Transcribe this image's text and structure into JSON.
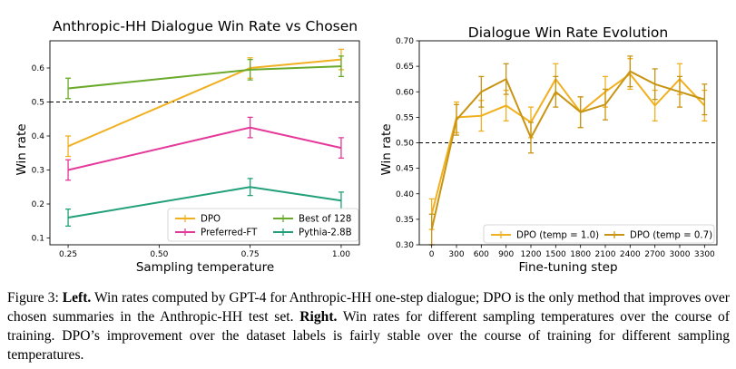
{
  "chart_data": [
    {
      "type": "line",
      "title": "Anthropic-HH Dialogue Win Rate vs Chosen",
      "xlabel": "Sampling temperature",
      "ylabel": "Win rate",
      "xlim": [
        0.2,
        1.05
      ],
      "ylim": [
        0.08,
        0.68
      ],
      "xticks": [
        0.25,
        0.5,
        0.75,
        1.0
      ],
      "xtick_labels": [
        "0.25",
        "0.50",
        "0.75",
        "1.00"
      ],
      "yticks": [
        0.1,
        0.2,
        0.3,
        0.4,
        0.5,
        0.6
      ],
      "ytick_labels": [
        "0.1",
        "0.2",
        "0.3",
        "0.4",
        "0.5",
        "0.6"
      ],
      "reference_line": 0.5,
      "legend_position": "lower-right",
      "series": [
        {
          "name": "DPO",
          "color": "#f0b020",
          "x": [
            0.25,
            0.75,
            1.0
          ],
          "values": [
            0.37,
            0.6,
            0.625
          ],
          "errors": [
            0.03,
            0.03,
            0.03
          ]
        },
        {
          "name": "Best of 128",
          "color": "#6aaa2a",
          "x": [
            0.25,
            0.75,
            1.0
          ],
          "values": [
            0.54,
            0.595,
            0.605
          ],
          "errors": [
            0.03,
            0.03,
            0.03
          ]
        },
        {
          "name": "Preferred-FT",
          "color": "#e5399a",
          "x": [
            0.25,
            0.75,
            1.0
          ],
          "values": [
            0.3,
            0.425,
            0.365
          ],
          "errors": [
            0.03,
            0.03,
            0.03
          ]
        },
        {
          "name": "Pythia-2.8B",
          "color": "#21a07a",
          "x": [
            0.25,
            0.75,
            1.0
          ],
          "values": [
            0.16,
            0.25,
            0.21
          ],
          "errors": [
            0.025,
            0.025,
            0.025
          ]
        }
      ]
    },
    {
      "type": "line",
      "title": "Dialogue Win Rate Evolution",
      "xlabel": "Fine-tuning step",
      "ylabel": "Win rate",
      "xlim": [
        -150,
        3450
      ],
      "ylim": [
        0.3,
        0.7
      ],
      "xticks": [
        0,
        300,
        600,
        900,
        1200,
        1500,
        1800,
        2100,
        2400,
        2700,
        3000,
        3300
      ],
      "xtick_labels": [
        "0",
        "300",
        "600",
        "900",
        "1200",
        "1500",
        "1800",
        "2100",
        "2400",
        "2700",
        "3000",
        "3300"
      ],
      "yticks": [
        0.3,
        0.35,
        0.4,
        0.45,
        0.5,
        0.55,
        0.6,
        0.65,
        0.7
      ],
      "ytick_labels": [
        "0.30",
        "0.35",
        "0.40",
        "0.45",
        "0.50",
        "0.55",
        "0.60",
        "0.65",
        "0.70"
      ],
      "reference_line": 0.5,
      "legend_position": "lower-right",
      "series": [
        {
          "name": "DPO (temp = 1.0)",
          "color": "#f0b020",
          "x": [
            0,
            300,
            600,
            900,
            1200,
            1500,
            1800,
            2100,
            2400,
            2700,
            3000,
            3300
          ],
          "values": [
            0.36,
            0.55,
            0.553,
            0.573,
            0.54,
            0.625,
            0.56,
            0.6,
            0.635,
            0.573,
            0.625,
            0.573
          ],
          "errors": [
            0.03,
            0.03,
            0.03,
            0.03,
            0.03,
            0.03,
            0.03,
            0.03,
            0.03,
            0.03,
            0.03,
            0.03
          ]
        },
        {
          "name": "DPO (temp = 0.7)",
          "color": "#c89414",
          "x": [
            0,
            300,
            600,
            900,
            1200,
            1500,
            1800,
            2100,
            2400,
            2700,
            3000,
            3300
          ],
          "values": [
            0.33,
            0.545,
            0.6,
            0.625,
            0.51,
            0.6,
            0.56,
            0.575,
            0.64,
            0.615,
            0.6,
            0.585
          ],
          "errors": [
            0.03,
            0.03,
            0.03,
            0.03,
            0.03,
            0.03,
            0.03,
            0.03,
            0.03,
            0.03,
            0.03,
            0.03
          ]
        }
      ]
    }
  ],
  "caption": {
    "label": "Figure 3: ",
    "left_label": "Left.",
    "left_text": " Win rates computed by GPT-4 for Anthropic-HH one-step dialogue; DPO is the only method that improves over chosen summaries in the Anthropic-HH test set. ",
    "right_label": "Right.",
    "right_text": " Win rates for different sampling temperatures over the course of training. DPO’s improvement over the dataset labels is fairly stable over the course of training for different sampling temperatures."
  }
}
